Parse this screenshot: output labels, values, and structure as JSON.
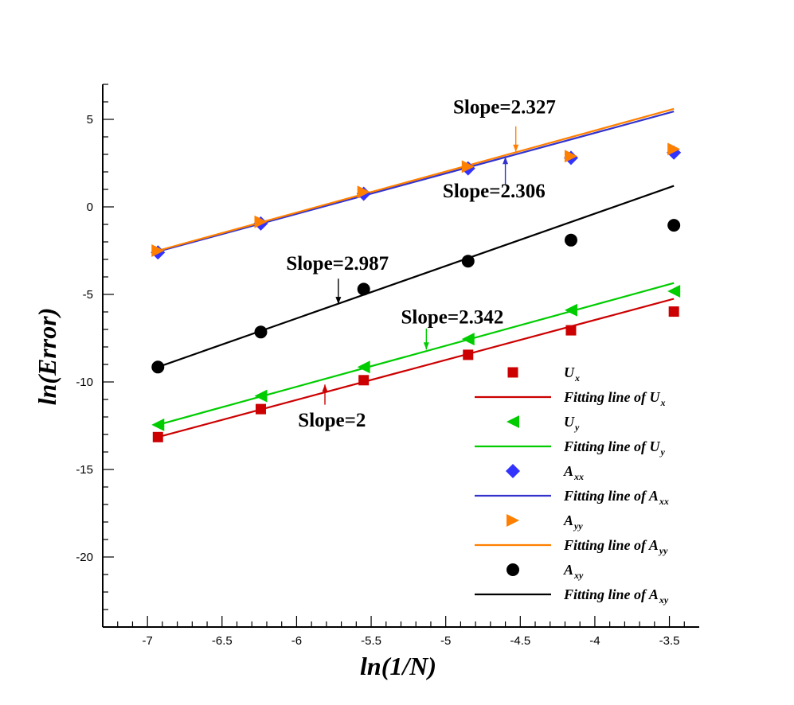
{
  "chart_data": {
    "type": "scatter",
    "title": "",
    "xlabel": "ln(1/N)",
    "ylabel": "ln(Error)",
    "xlim": [
      -7.3,
      -3.3
    ],
    "ylim": [
      -24,
      7
    ],
    "xticks": [
      -7,
      -6.5,
      -6,
      -5.5,
      -5,
      -4.5,
      -4,
      -3.5
    ],
    "xtick_labels": [
      "-7",
      "-6.5",
      "-6",
      "-5.5",
      "-5",
      "-4.5",
      "-4",
      "-3.5"
    ],
    "yticks": [
      5,
      0,
      -5,
      -10,
      -15,
      -20
    ],
    "ytick_labels": [
      "5",
      "0",
      "-5",
      "-10",
      "-15",
      "-20"
    ],
    "grid": false,
    "legend_position": "bottom-right",
    "series": [
      {
        "key": "Ux",
        "label_main": "U",
        "label_sub": "x",
        "fit_main": "Fitting line of U",
        "fit_sub": "x",
        "marker": "square",
        "color": "#cc0000",
        "line_color": "#cc0000",
        "x": [
          -6.93,
          -6.24,
          -5.55,
          -4.85,
          -4.16,
          -3.47
        ],
        "y": [
          -13.15,
          -11.55,
          -9.9,
          -8.45,
          -7.05,
          -5.98
        ],
        "fit": {
          "x": [
            -6.93,
            -3.47
          ],
          "y": [
            -13.15,
            -5.25
          ]
        }
      },
      {
        "key": "Uy",
        "label_main": "U",
        "label_sub": "y",
        "fit_main": "Fitting line of U",
        "fit_sub": "y",
        "marker": "triangle-left",
        "color": "#00cc00",
        "line_color": "#00cc00",
        "x": [
          -6.93,
          -6.24,
          -5.55,
          -4.85,
          -4.16,
          -3.47
        ],
        "y": [
          -12.45,
          -10.8,
          -9.15,
          -7.55,
          -5.9,
          -4.82
        ],
        "fit": {
          "x": [
            -6.93,
            -3.47
          ],
          "y": [
            -12.45,
            -4.35
          ]
        }
      },
      {
        "key": "Axx",
        "label_main": "A",
        "label_sub": "xx",
        "fit_main": "Fitting line of A",
        "fit_sub": "xx",
        "marker": "diamond",
        "color": "#3333ff",
        "line_color": "#3333cc",
        "x": [
          -6.93,
          -6.24,
          -5.55,
          -4.85,
          -4.16,
          -3.47
        ],
        "y": [
          -2.6,
          -0.95,
          0.75,
          2.2,
          2.8,
          3.1
        ],
        "fit": {
          "x": [
            -6.93,
            -3.47
          ],
          "y": [
            -2.55,
            5.45
          ]
        }
      },
      {
        "key": "Ayy",
        "label_main": "A",
        "label_sub": "yy",
        "fit_main": "Fitting line of A",
        "fit_sub": "yy",
        "marker": "triangle-right",
        "color": "#ff8000",
        "line_color": "#ff8000",
        "x": [
          -6.93,
          -6.24,
          -5.55,
          -4.85,
          -4.16,
          -3.47
        ],
        "y": [
          -2.5,
          -0.85,
          0.85,
          2.3,
          2.9,
          3.3
        ],
        "fit": {
          "x": [
            -6.93,
            -3.47
          ],
          "y": [
            -2.5,
            5.6
          ]
        }
      },
      {
        "key": "Axy",
        "label_main": "A",
        "label_sub": "xy",
        "fit_main": "Fitting line of A",
        "fit_sub": "xy",
        "marker": "circle",
        "color": "#000000",
        "line_color": "#000000",
        "x": [
          -6.93,
          -6.24,
          -5.55,
          -4.85,
          -4.16,
          -3.47
        ],
        "y": [
          -9.15,
          -7.15,
          -4.7,
          -3.1,
          -1.9,
          -1.05
        ],
        "fit": {
          "x": [
            -6.93,
            -3.47
          ],
          "y": [
            -9.15,
            1.2
          ]
        }
      }
    ],
    "annotations": [
      {
        "text": "Slope=2.327",
        "color": "#ff8000",
        "text_x": -4.95,
        "text_y": 5.35,
        "arrow_from": [
          -4.53,
          4.6
        ],
        "arrow_to": [
          -4.53,
          3.15
        ]
      },
      {
        "text": "Slope=2.306",
        "color": "#3333cc",
        "text_x": -5.02,
        "text_y": 0.55,
        "arrow_from": [
          -4.6,
          1.3
        ],
        "arrow_to": [
          -4.6,
          2.85
        ]
      },
      {
        "text": "Slope=2.987",
        "color": "#000000",
        "text_x": -6.07,
        "text_y": -3.6,
        "arrow_from": [
          -5.72,
          -4.1
        ],
        "arrow_to": [
          -5.72,
          -5.55
        ]
      },
      {
        "text": "Slope=2.342",
        "color": "#00cc00",
        "text_x": -5.3,
        "text_y": -6.65,
        "arrow_from": [
          -5.13,
          -6.95
        ],
        "arrow_to": [
          -5.13,
          -8.15
        ]
      },
      {
        "text": "Slope=2",
        "color": "#cc0000",
        "text_x": -5.99,
        "text_y": -12.55,
        "arrow_from": [
          -5.81,
          -11.3
        ],
        "arrow_to": [
          -5.81,
          -10.15
        ]
      }
    ]
  }
}
